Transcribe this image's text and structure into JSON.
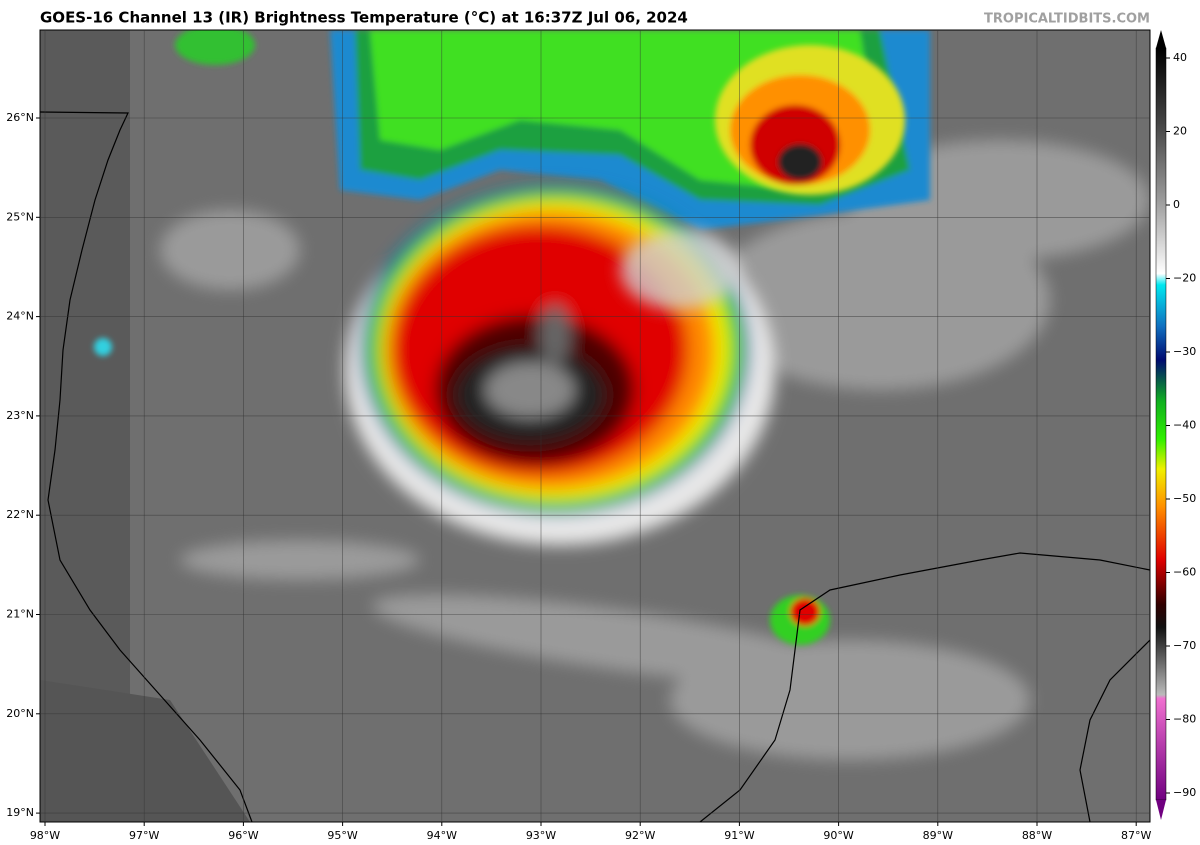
{
  "header": {
    "title": "GOES-16 Channel 13 (IR) Brightness Temperature (°C) at 16:37Z Jul 06, 2024",
    "watermark": "TROPICALTIDBITS.COM"
  },
  "map": {
    "lat_labels": [
      "26°N",
      "25°N",
      "24°N",
      "23°N",
      "22°N",
      "21°N",
      "20°N",
      "19°N"
    ],
    "lon_labels": [
      "98°W",
      "97°W",
      "96°W",
      "95°W",
      "94°W",
      "93°W",
      "92°W",
      "91°W",
      "90°W",
      "89°W",
      "88°W",
      "87°W"
    ]
  },
  "colorbar": {
    "ticks": [
      40,
      20,
      0,
      {
        "value": -20,
        "label": "−20"
      },
      {
        "value": -30,
        "label": "−30"
      },
      {
        "value": -40,
        "label": "−40"
      },
      {
        "value": -50,
        "label": "−50"
      },
      {
        "value": -60,
        "label": "−60"
      },
      {
        "value": -70,
        "label": "−70"
      },
      {
        "value": -80,
        "label": "−80"
      },
      {
        "value": -90,
        "label": "−90"
      }
    ]
  }
}
